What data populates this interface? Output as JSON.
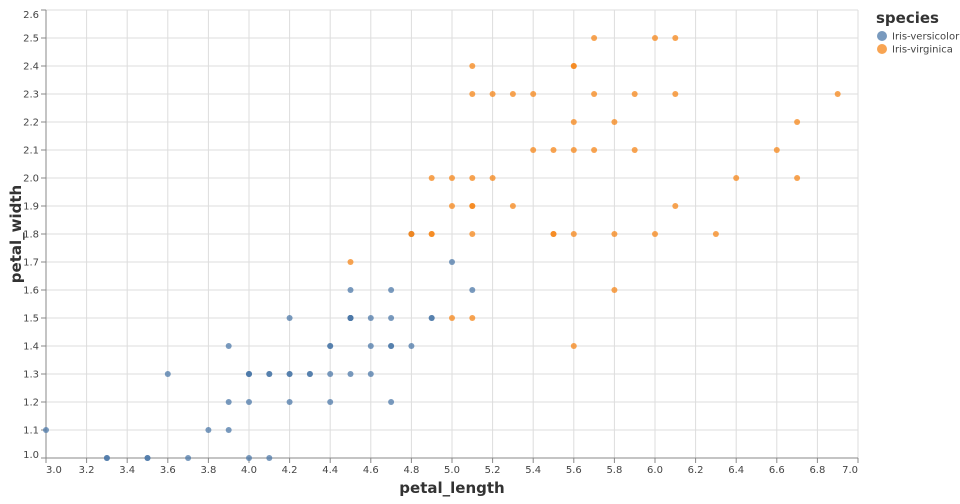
{
  "chart_data": {
    "type": "scatter",
    "xlabel": "petal_length",
    "ylabel": "petal_width",
    "xlim": [
      3.0,
      7.0
    ],
    "ylim": [
      1.0,
      2.6
    ],
    "x_ticks": [
      "3.0",
      "3.2",
      "3.4",
      "3.6",
      "3.8",
      "4.0",
      "4.2",
      "4.4",
      "4.6",
      "4.8",
      "5.0",
      "5.2",
      "5.4",
      "5.6",
      "5.8",
      "6.0",
      "6.2",
      "6.4",
      "6.6",
      "6.8",
      "7.0"
    ],
    "y_ticks": [
      "1.0",
      "1.1",
      "1.2",
      "1.3",
      "1.4",
      "1.5",
      "1.6",
      "1.7",
      "1.8",
      "1.9",
      "2.0",
      "2.1",
      "2.2",
      "2.3",
      "2.4",
      "2.5",
      "2.6"
    ],
    "grid": true,
    "legend": {
      "title": "species",
      "placement": "top-right"
    },
    "series": [
      {
        "name": "Iris-versicolor",
        "color": "#4c78a8",
        "points": [
          [
            4.7,
            1.4
          ],
          [
            4.5,
            1.5
          ],
          [
            4.9,
            1.5
          ],
          [
            4.0,
            1.3
          ],
          [
            4.6,
            1.5
          ],
          [
            4.5,
            1.3
          ],
          [
            4.7,
            1.6
          ],
          [
            3.3,
            1.0
          ],
          [
            4.6,
            1.3
          ],
          [
            3.9,
            1.4
          ],
          [
            3.5,
            1.0
          ],
          [
            4.2,
            1.5
          ],
          [
            4.0,
            1.0
          ],
          [
            4.7,
            1.4
          ],
          [
            3.6,
            1.3
          ],
          [
            4.4,
            1.4
          ],
          [
            4.5,
            1.5
          ],
          [
            4.1,
            1.0
          ],
          [
            4.5,
            1.5
          ],
          [
            3.9,
            1.1
          ],
          [
            4.8,
            1.8
          ],
          [
            4.0,
            1.3
          ],
          [
            4.9,
            1.5
          ],
          [
            4.7,
            1.2
          ],
          [
            4.3,
            1.3
          ],
          [
            4.4,
            1.4
          ],
          [
            4.8,
            1.4
          ],
          [
            5.0,
            1.7
          ],
          [
            4.5,
            1.5
          ],
          [
            3.5,
            1.0
          ],
          [
            3.8,
            1.1
          ],
          [
            3.7,
            1.0
          ],
          [
            3.9,
            1.2
          ],
          [
            5.1,
            1.6
          ],
          [
            4.5,
            1.5
          ],
          [
            4.5,
            1.6
          ],
          [
            4.7,
            1.5
          ],
          [
            4.4,
            1.3
          ],
          [
            4.1,
            1.3
          ],
          [
            4.0,
            1.3
          ],
          [
            4.4,
            1.2
          ],
          [
            4.6,
            1.4
          ],
          [
            4.0,
            1.2
          ],
          [
            3.3,
            1.0
          ],
          [
            4.2,
            1.3
          ],
          [
            4.2,
            1.2
          ],
          [
            4.2,
            1.3
          ],
          [
            4.3,
            1.3
          ],
          [
            3.0,
            1.1
          ],
          [
            4.1,
            1.3
          ]
        ]
      },
      {
        "name": "Iris-virginica",
        "color": "#f58518",
        "points": [
          [
            6.0,
            2.5
          ],
          [
            5.1,
            1.9
          ],
          [
            5.9,
            2.1
          ],
          [
            5.6,
            1.8
          ],
          [
            5.8,
            2.2
          ],
          [
            6.6,
            2.1
          ],
          [
            4.5,
            1.7
          ],
          [
            6.3,
            1.8
          ],
          [
            5.8,
            1.8
          ],
          [
            6.1,
            2.5
          ],
          [
            5.1,
            2.0
          ],
          [
            5.3,
            1.9
          ],
          [
            5.5,
            2.1
          ],
          [
            5.0,
            2.0
          ],
          [
            5.1,
            2.4
          ],
          [
            5.3,
            2.3
          ],
          [
            5.5,
            1.8
          ],
          [
            6.7,
            2.2
          ],
          [
            6.9,
            2.3
          ],
          [
            5.0,
            1.5
          ],
          [
            5.7,
            2.3
          ],
          [
            4.9,
            2.0
          ],
          [
            6.7,
            2.0
          ],
          [
            4.9,
            1.8
          ],
          [
            5.7,
            2.1
          ],
          [
            6.0,
            1.8
          ],
          [
            4.8,
            1.8
          ],
          [
            4.9,
            1.8
          ],
          [
            5.6,
            2.1
          ],
          [
            5.8,
            1.6
          ],
          [
            6.1,
            1.9
          ],
          [
            6.4,
            2.0
          ],
          [
            5.6,
            2.2
          ],
          [
            5.1,
            1.5
          ],
          [
            5.6,
            1.4
          ],
          [
            6.1,
            2.3
          ],
          [
            5.6,
            2.4
          ],
          [
            5.5,
            1.8
          ],
          [
            4.8,
            1.8
          ],
          [
            5.4,
            2.1
          ],
          [
            5.6,
            2.4
          ],
          [
            5.1,
            2.3
          ],
          [
            5.1,
            1.9
          ],
          [
            5.9,
            2.3
          ],
          [
            5.7,
            2.5
          ],
          [
            5.2,
            2.3
          ],
          [
            5.0,
            1.9
          ],
          [
            5.2,
            2.0
          ],
          [
            5.4,
            2.3
          ],
          [
            5.1,
            1.8
          ]
        ]
      }
    ]
  }
}
